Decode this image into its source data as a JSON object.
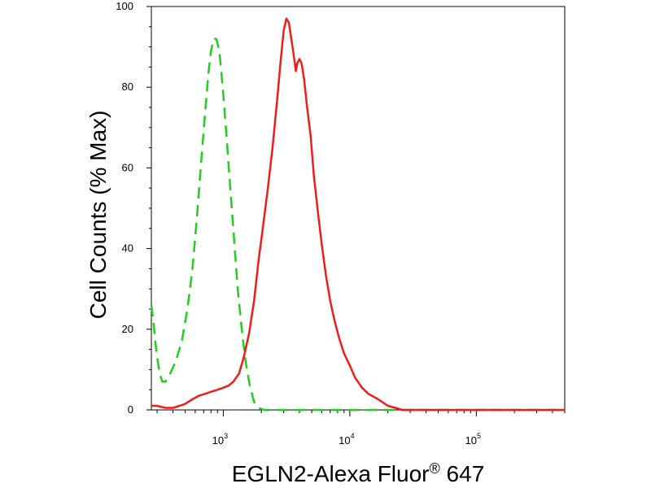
{
  "chart_data": {
    "type": "line",
    "title": "",
    "xlabel": {
      "prefix": "EGLN2-Alexa Fluor",
      "superscript": "®",
      "suffix": " 647"
    },
    "ylabel": "Cell Counts (% Max)",
    "x_scale": "log",
    "xlim": [
      270,
      500000
    ],
    "ylim": [
      0,
      100
    ],
    "yticks": [
      {
        "value": 0,
        "label": "0"
      },
      {
        "value": 20,
        "label": "20"
      },
      {
        "value": 40,
        "label": "40"
      },
      {
        "value": 60,
        "label": "60"
      },
      {
        "value": 80,
        "label": "80"
      },
      {
        "value": 100,
        "label": "100"
      }
    ],
    "xticks": [
      {
        "value": 1000,
        "base": "10",
        "exp": "3"
      },
      {
        "value": 10000,
        "base": "10",
        "exp": "4"
      },
      {
        "value": 100000,
        "base": "10",
        "exp": "5"
      }
    ],
    "series": [
      {
        "color": "#22cc22",
        "dash": "dashed",
        "points": [
          [
            270,
            26
          ],
          [
            280,
            22
          ],
          [
            290,
            17
          ],
          [
            300,
            13
          ],
          [
            315,
            9
          ],
          [
            330,
            7
          ],
          [
            350,
            7
          ],
          [
            380,
            9
          ],
          [
            420,
            12
          ],
          [
            470,
            17
          ],
          [
            520,
            25
          ],
          [
            570,
            35
          ],
          [
            620,
            48
          ],
          [
            670,
            62
          ],
          [
            720,
            74
          ],
          [
            760,
            83
          ],
          [
            800,
            89
          ],
          [
            840,
            92
          ],
          [
            880,
            92
          ],
          [
            930,
            89
          ],
          [
            990,
            80
          ],
          [
            1060,
            68
          ],
          [
            1140,
            54
          ],
          [
            1220,
            42
          ],
          [
            1300,
            30
          ],
          [
            1400,
            20
          ],
          [
            1500,
            12
          ],
          [
            1620,
            6
          ],
          [
            1750,
            2
          ],
          [
            1900,
            0.5
          ],
          [
            2100,
            0
          ],
          [
            500000,
            0
          ]
        ]
      },
      {
        "color": "#ee1c1c",
        "dash": "solid",
        "points": [
          [
            270,
            1
          ],
          [
            300,
            1
          ],
          [
            350,
            0.5
          ],
          [
            400,
            0.5
          ],
          [
            450,
            1
          ],
          [
            500,
            1.5
          ],
          [
            560,
            2.5
          ],
          [
            640,
            3.5
          ],
          [
            720,
            4
          ],
          [
            800,
            4.5
          ],
          [
            900,
            5
          ],
          [
            1000,
            5.5
          ],
          [
            1100,
            6
          ],
          [
            1200,
            7
          ],
          [
            1330,
            9
          ],
          [
            1450,
            13
          ],
          [
            1600,
            19
          ],
          [
            1750,
            27
          ],
          [
            1900,
            37
          ],
          [
            2050,
            45
          ],
          [
            2250,
            55
          ],
          [
            2450,
            65
          ],
          [
            2650,
            76
          ],
          [
            2850,
            87
          ],
          [
            3000,
            94
          ],
          [
            3150,
            97
          ],
          [
            3300,
            96
          ],
          [
            3450,
            92
          ],
          [
            3600,
            88
          ],
          [
            3750,
            84
          ],
          [
            3850,
            86
          ],
          [
            4000,
            87
          ],
          [
            4150,
            86
          ],
          [
            4350,
            82
          ],
          [
            4600,
            75
          ],
          [
            4900,
            68
          ],
          [
            5200,
            58
          ],
          [
            5600,
            49
          ],
          [
            6000,
            41
          ],
          [
            6500,
            33
          ],
          [
            7000,
            27
          ],
          [
            7600,
            22
          ],
          [
            8200,
            18
          ],
          [
            9000,
            14
          ],
          [
            10000,
            11
          ],
          [
            11000,
            8
          ],
          [
            12500,
            5.5
          ],
          [
            14000,
            4
          ],
          [
            16000,
            3
          ],
          [
            18000,
            2
          ],
          [
            20000,
            1
          ],
          [
            23000,
            0.5
          ],
          [
            26000,
            0
          ],
          [
            500000,
            0
          ]
        ]
      }
    ]
  }
}
